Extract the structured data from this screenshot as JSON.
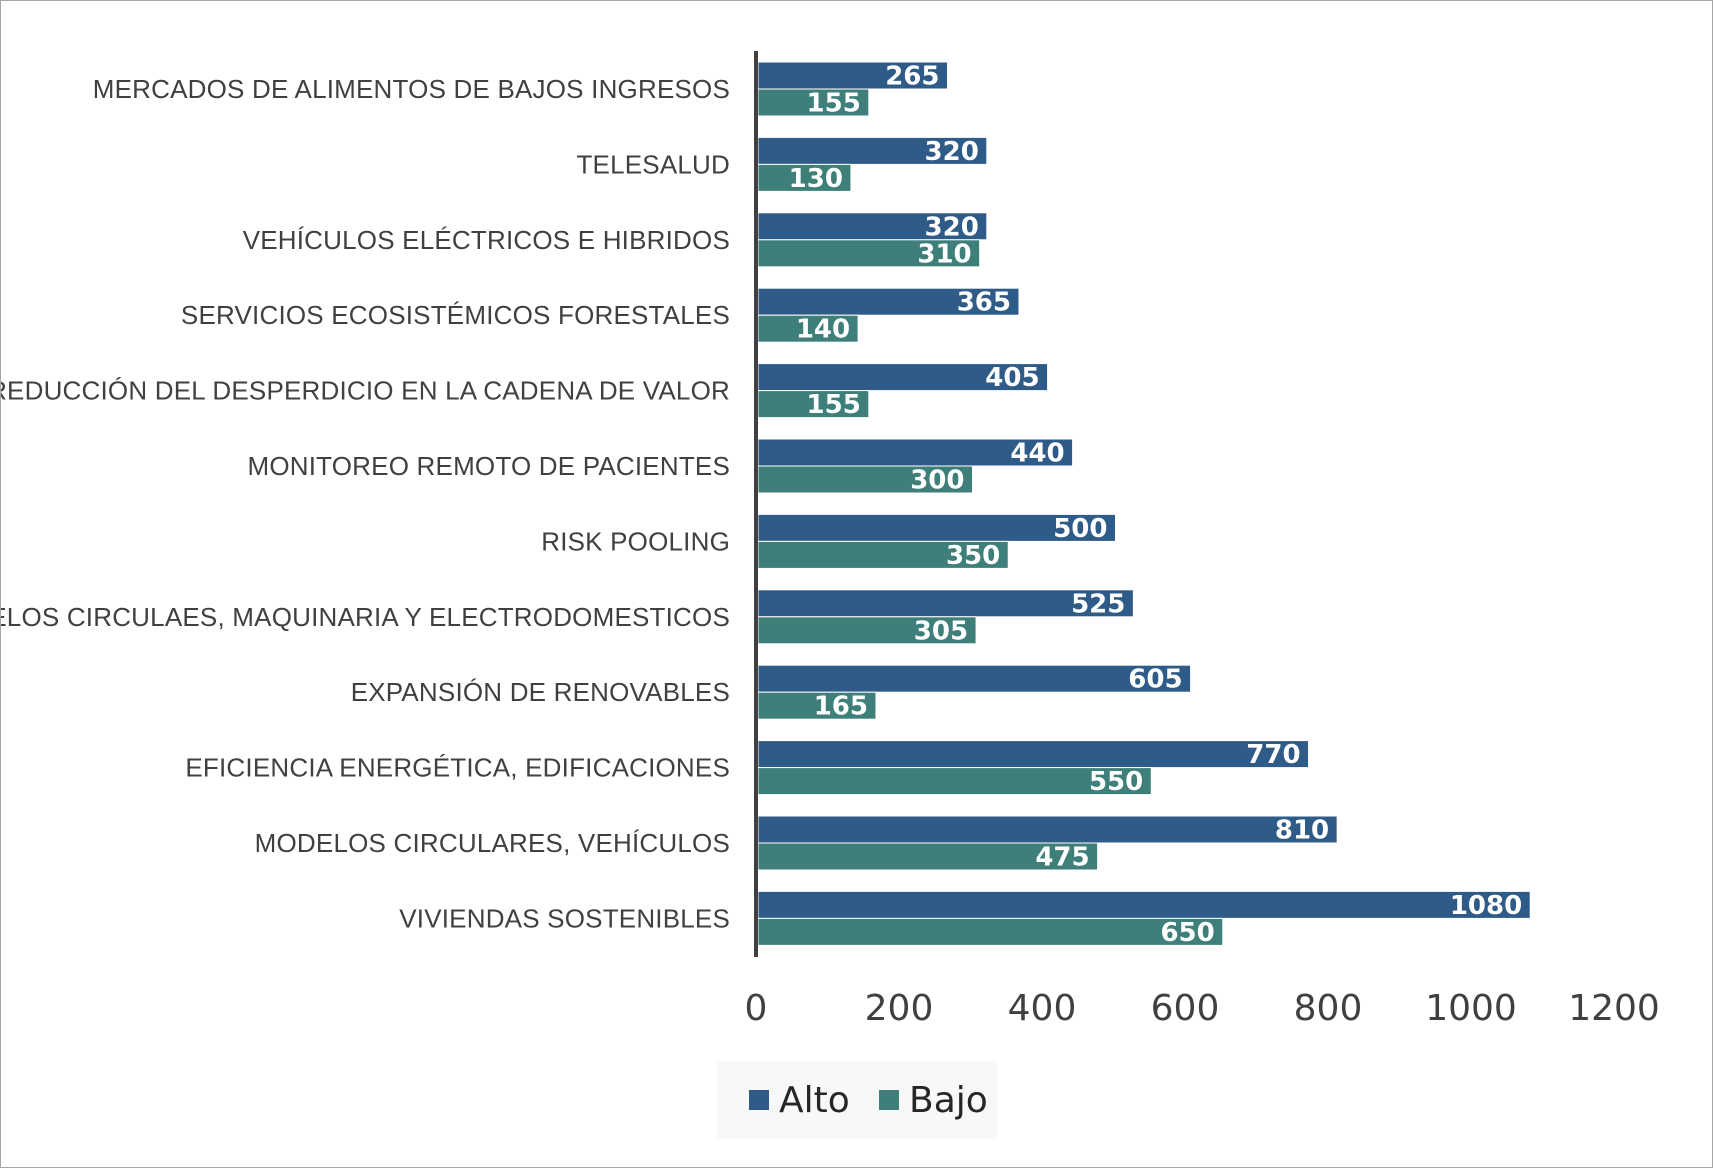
{
  "chart_data": {
    "type": "bar",
    "orientation": "horizontal",
    "categories": [
      "MERCADOS DE ALIMENTOS DE BAJOS INGRESOS",
      "TELESALUD",
      "VEHÍCULOS ELÉCTRICOS E HIBRIDOS",
      "SERVICIOS ECOSISTÉMICOS FORESTALES",
      "REDUCCIÓN DEL DESPERDICIO EN LA CADENA DE VALOR",
      "MONITOREO REMOTO DE PACIENTES",
      "RISK POOLING",
      "MODELOS CIRCULAES, MAQUINARIA Y ELECTRODOMESTICOS",
      "EXPANSIÓN DE RENOVABLES",
      "EFICIENCIA ENERGÉTICA, EDIFICACIONES",
      "MODELOS CIRCULARES, VEHÍCULOS",
      "VIVIENDAS SOSTENIBLES"
    ],
    "series": [
      {
        "name": "Alto",
        "color": "#2e5b87",
        "values": [
          265,
          320,
          320,
          365,
          405,
          440,
          500,
          525,
          605,
          770,
          810,
          1080
        ]
      },
      {
        "name": "Bajo",
        "color": "#3f7f7a",
        "values": [
          155,
          130,
          310,
          140,
          155,
          300,
          350,
          305,
          165,
          550,
          475,
          650
        ]
      }
    ],
    "xlim": [
      0,
      1200
    ],
    "xticks": [
      "0",
      "200",
      "400",
      "600",
      "800",
      "1000",
      "1200"
    ],
    "data_labels": true,
    "grid": false,
    "legend_position": "bottom",
    "title": "",
    "xlabel": "",
    "ylabel": ""
  }
}
